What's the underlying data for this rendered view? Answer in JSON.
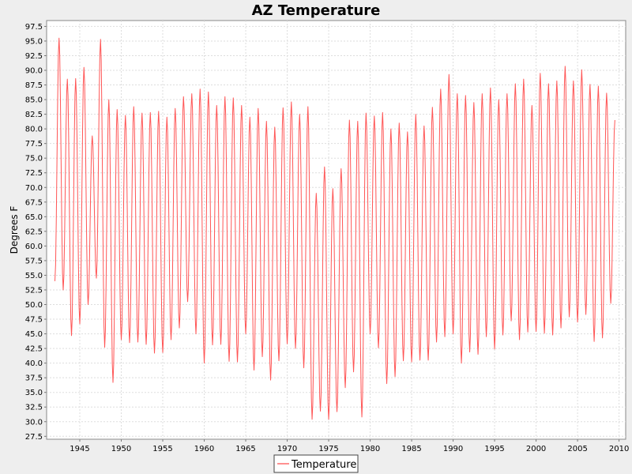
{
  "chart_data": {
    "type": "line",
    "title": "AZ Temperature",
    "xlabel": "",
    "ylabel": "Degrees F",
    "xlim": [
      1941.0,
      2010.8
    ],
    "ylim": [
      27.0,
      98.5
    ],
    "x_ticks": [
      1945,
      1950,
      1955,
      1960,
      1965,
      1970,
      1975,
      1980,
      1985,
      1990,
      1995,
      2000,
      2005,
      2010
    ],
    "y_ticks": [
      27.5,
      30.0,
      32.5,
      35.0,
      37.5,
      40.0,
      42.5,
      45.0,
      47.5,
      50.0,
      52.5,
      55.0,
      57.5,
      60.0,
      62.5,
      65.0,
      67.5,
      70.0,
      72.5,
      75.0,
      77.5,
      80.0,
      82.5,
      85.0,
      87.5,
      90.0,
      92.5,
      95.0,
      97.5
    ],
    "grid": true,
    "legend_position": "bottom",
    "colors": {
      "series": "#ff5555",
      "plot_background": "#ffffff",
      "grid": "#dddddd",
      "outer_background": "#eeeeee"
    },
    "series": [
      {
        "name": "Temperature",
        "extrema": [
          [
            1942.0,
            54
          ],
          [
            1942.5,
            95.5
          ],
          [
            1943.0,
            52.5
          ],
          [
            1943.5,
            88.5
          ],
          [
            1944.0,
            44.7
          ],
          [
            1944.5,
            88.6
          ],
          [
            1945.0,
            46.7
          ],
          [
            1945.5,
            90.5
          ],
          [
            1946.0,
            50.0
          ],
          [
            1946.5,
            78.8
          ],
          [
            1947.0,
            54.5
          ],
          [
            1947.5,
            95.3
          ],
          [
            1948.0,
            42.7
          ],
          [
            1948.5,
            85.0
          ],
          [
            1949.0,
            36.7
          ],
          [
            1949.5,
            83.3
          ],
          [
            1950.0,
            44.0
          ],
          [
            1950.5,
            82.3
          ],
          [
            1951.0,
            43.5
          ],
          [
            1951.5,
            83.8
          ],
          [
            1952.0,
            43.6
          ],
          [
            1952.5,
            82.7
          ],
          [
            1953.0,
            43.2
          ],
          [
            1953.5,
            82.8
          ],
          [
            1954.0,
            41.7
          ],
          [
            1954.5,
            83.0
          ],
          [
            1955.0,
            41.8
          ],
          [
            1955.5,
            82.0
          ],
          [
            1956.0,
            44.0
          ],
          [
            1956.5,
            83.5
          ],
          [
            1957.0,
            46.0
          ],
          [
            1957.5,
            85.5
          ],
          [
            1958.0,
            50.5
          ],
          [
            1958.5,
            86.0
          ],
          [
            1959.0,
            45.0
          ],
          [
            1959.5,
            86.8
          ],
          [
            1960.0,
            40.0
          ],
          [
            1960.5,
            86.3
          ],
          [
            1961.0,
            43.1
          ],
          [
            1961.5,
            84.0
          ],
          [
            1962.0,
            43.2
          ],
          [
            1962.5,
            85.5
          ],
          [
            1963.0,
            40.3
          ],
          [
            1963.5,
            85.3
          ],
          [
            1964.0,
            40.2
          ],
          [
            1964.5,
            84.0
          ],
          [
            1965.0,
            45.0
          ],
          [
            1965.5,
            82.0
          ],
          [
            1966.0,
            38.8
          ],
          [
            1966.5,
            83.5
          ],
          [
            1967.0,
            41.1
          ],
          [
            1967.5,
            81.3
          ],
          [
            1968.0,
            37.1
          ],
          [
            1968.5,
            80.3
          ],
          [
            1969.0,
            40.4
          ],
          [
            1969.5,
            83.6
          ],
          [
            1970.0,
            43.3
          ],
          [
            1970.5,
            84.6
          ],
          [
            1971.0,
            42.5
          ],
          [
            1971.5,
            82.5
          ],
          [
            1972.0,
            39.2
          ],
          [
            1972.5,
            83.8
          ],
          [
            1973.0,
            30.4
          ],
          [
            1973.5,
            69.0
          ],
          [
            1974.0,
            31.8
          ],
          [
            1974.5,
            73.5
          ],
          [
            1975.0,
            30.4
          ],
          [
            1975.5,
            69.8
          ],
          [
            1976.0,
            31.7
          ],
          [
            1976.5,
            73.2
          ],
          [
            1977.0,
            35.8
          ],
          [
            1977.5,
            81.5
          ],
          [
            1978.0,
            38.5
          ],
          [
            1978.5,
            81.3
          ],
          [
            1979.0,
            30.8
          ],
          [
            1979.5,
            82.7
          ],
          [
            1980.0,
            45.0
          ],
          [
            1980.5,
            82.2
          ],
          [
            1981.0,
            42.6
          ],
          [
            1981.5,
            82.8
          ],
          [
            1982.0,
            36.5
          ],
          [
            1982.5,
            80.0
          ],
          [
            1983.0,
            37.7
          ],
          [
            1983.5,
            81.0
          ],
          [
            1984.0,
            40.4
          ],
          [
            1984.5,
            79.5
          ],
          [
            1985.0,
            40.2
          ],
          [
            1985.5,
            82.5
          ],
          [
            1986.0,
            40.5
          ],
          [
            1986.5,
            80.5
          ],
          [
            1987.0,
            40.5
          ],
          [
            1987.5,
            83.7
          ],
          [
            1988.0,
            43.6
          ],
          [
            1988.5,
            86.8
          ],
          [
            1989.0,
            44.5
          ],
          [
            1989.5,
            89.3
          ],
          [
            1990.0,
            45.0
          ],
          [
            1990.5,
            86.0
          ],
          [
            1991.0,
            40.0
          ],
          [
            1991.5,
            85.7
          ],
          [
            1992.0,
            41.9
          ],
          [
            1992.5,
            84.5
          ],
          [
            1993.0,
            41.5
          ],
          [
            1993.5,
            86.0
          ],
          [
            1994.0,
            44.5
          ],
          [
            1994.5,
            87.0
          ],
          [
            1995.0,
            42.4
          ],
          [
            1995.5,
            85.0
          ],
          [
            1996.0,
            44.8
          ],
          [
            1996.5,
            86.0
          ],
          [
            1997.0,
            47.2
          ],
          [
            1997.5,
            87.7
          ],
          [
            1998.0,
            44.0
          ],
          [
            1998.5,
            88.5
          ],
          [
            1999.0,
            45.3
          ],
          [
            1999.5,
            84.0
          ],
          [
            2000.0,
            45.4
          ],
          [
            2000.5,
            89.5
          ],
          [
            2001.0,
            45.1
          ],
          [
            2001.5,
            87.7
          ],
          [
            2002.0,
            44.8
          ],
          [
            2002.5,
            88.2
          ],
          [
            2003.0,
            46.0
          ],
          [
            2003.5,
            90.7
          ],
          [
            2004.0,
            47.9
          ],
          [
            2004.5,
            88.2
          ],
          [
            2005.0,
            47.0
          ],
          [
            2005.5,
            90.1
          ],
          [
            2006.0,
            48.3
          ],
          [
            2006.5,
            87.6
          ],
          [
            2007.0,
            43.7
          ],
          [
            2007.5,
            87.3
          ],
          [
            2008.0,
            44.3
          ],
          [
            2008.5,
            86.1
          ],
          [
            2009.0,
            50.2
          ],
          [
            2009.5,
            81.5
          ]
        ]
      }
    ]
  }
}
